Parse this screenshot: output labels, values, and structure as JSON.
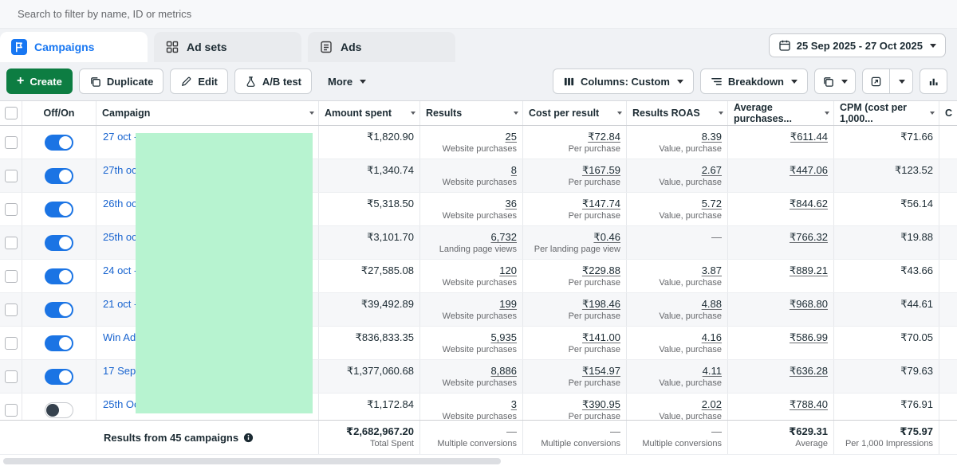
{
  "search": {
    "placeholder": "Search to filter by name, ID or metrics"
  },
  "tabs": {
    "campaigns": "Campaigns",
    "adsets": "Ad sets",
    "ads": "Ads"
  },
  "date_range": "25 Sep 2025 - 27 Oct 2025",
  "toolbar": {
    "create": "Create",
    "duplicate": "Duplicate",
    "edit": "Edit",
    "ab_test": "A/B test",
    "more": "More",
    "columns": "Columns: Custom",
    "breakdown": "Breakdown"
  },
  "colors": {
    "accent": "#1b74e4",
    "link": "#1763cf",
    "green": "#0d7d42",
    "redaction": "#b7f3d0"
  },
  "table": {
    "columns": [
      "Off/On",
      "Campaign",
      "Amount spent",
      "Results",
      "Cost per result",
      "Results ROAS",
      "Average purchases...",
      "CPM (cost per 1,000...",
      "C"
    ],
    "rows": [
      {
        "name": "27 oct - s",
        "on": true,
        "amount": "₹1,820.90",
        "results": "25",
        "results_sub": "Website purchases",
        "cost": "₹72.84",
        "cost_sub": "Per purchase",
        "roas": "8.39",
        "roas_sub": "Value, purchase",
        "avg": "₹611.44",
        "cpm": "₹71.66"
      },
      {
        "name": "27th oct",
        "on": true,
        "amount": "₹1,340.74",
        "results": "8",
        "results_sub": "Website purchases",
        "cost": "₹167.59",
        "cost_sub": "Per purchase",
        "roas": "2.67",
        "roas_sub": "Value, purchase",
        "avg": "₹447.06",
        "cpm": "₹123.52"
      },
      {
        "name": "26th oct",
        "on": true,
        "amount": "₹5,318.50",
        "results": "36",
        "results_sub": "Website purchases",
        "cost": "₹147.74",
        "cost_sub": "Per purchase",
        "roas": "5.72",
        "roas_sub": "Value, purchase",
        "avg": "₹844.62",
        "cpm": "₹56.14"
      },
      {
        "name": "25th oct",
        "on": true,
        "amount": "₹3,101.70",
        "results": "6,732",
        "results_sub": "Landing page views",
        "cost": "₹0.46",
        "cost_sub": "Per landing page view",
        "roas": "—",
        "roas_sub": "",
        "avg": "₹766.32",
        "cpm": "₹19.88"
      },
      {
        "name": "24 oct - r",
        "on": true,
        "amount": "₹27,585.08",
        "results": "120",
        "results_sub": "Website purchases",
        "cost": "₹229.88",
        "cost_sub": "Per purchase",
        "roas": "3.87",
        "roas_sub": "Value, purchase",
        "avg": "₹889.21",
        "cpm": "₹43.66"
      },
      {
        "name": "21 oct - r",
        "on": true,
        "amount": "₹39,492.89",
        "results": "199",
        "results_sub": "Website purchases",
        "cost": "₹198.46",
        "cost_sub": "Per purchase",
        "roas": "4.88",
        "roas_sub": "Value, purchase",
        "avg": "₹968.80",
        "cpm": "₹44.61"
      },
      {
        "name": "Win Ads",
        "on": true,
        "amount": "₹836,833.35",
        "results": "5,935",
        "results_sub": "Website purchases",
        "cost": "₹141.00",
        "cost_sub": "Per purchase",
        "roas": "4.16",
        "roas_sub": "Value, purchase",
        "avg": "₹586.99",
        "cpm": "₹70.05"
      },
      {
        "name": "17 Sep | I",
        "on": true,
        "amount": "₹1,377,060.68",
        "results": "8,886",
        "results_sub": "Website purchases",
        "cost": "₹154.97",
        "cost_sub": "Per purchase",
        "roas": "4.11",
        "roas_sub": "Value, purchase",
        "avg": "₹636.28",
        "cpm": "₹79.63"
      },
      {
        "name": "25th Oct",
        "on": false,
        "amount": "₹1,172.84",
        "results": "3",
        "results_sub": "Website purchases",
        "cost": "₹390.95",
        "cost_sub": "Per purchase",
        "roas": "2.02",
        "roas_sub": "Value, purchase",
        "avg": "₹788.40",
        "cpm": "₹76.91"
      }
    ],
    "footer": {
      "label": "Results from 45 campaigns",
      "amount": "₹2,682,967.20",
      "amount_sub": "Total Spent",
      "results": "—",
      "results_sub": "Multiple conversions",
      "cost": "—",
      "cost_sub": "Multiple conversions",
      "roas": "—",
      "roas_sub": "Multiple conversions",
      "avg": "₹629.31",
      "avg_sub": "Average",
      "cpm": "₹75.97",
      "cpm_sub": "Per 1,000 Impressions"
    }
  }
}
